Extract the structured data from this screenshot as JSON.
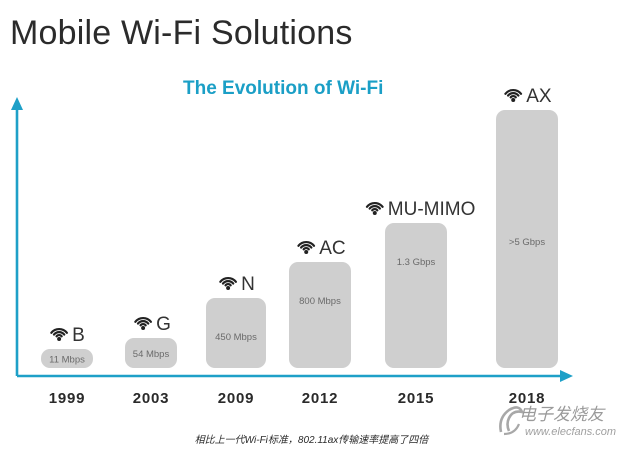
{
  "page": {
    "title": "Mobile Wi-Fi Solutions",
    "caption": "相比上一代Wi-Fi标准，802.11ax传输速率提高了四倍",
    "watermark": {
      "text": "电子发烧友",
      "url": "www.elecfans.com"
    }
  },
  "colors": {
    "bar": "#cfcfcf",
    "axis": "#1ea0c8",
    "subtitle": "#1b9fc6",
    "bar_label": "#6a6a6a",
    "standard_label": "#333333"
  },
  "icons": {
    "standard": "wifi-icon"
  },
  "chart_data": {
    "type": "bar",
    "title": "The Evolution of Wi-Fi",
    "xlabel": "",
    "ylabel": "",
    "grid": false,
    "legend": "none",
    "categories": [
      "1999",
      "2003",
      "2009",
      "2012",
      "2015",
      "2018"
    ],
    "series": [
      {
        "standards": [
          "B",
          "G",
          "N",
          "AC",
          "MU-MIMO",
          "AX"
        ],
        "values": [
          11,
          54,
          450,
          800,
          1300,
          5000
        ],
        "value_labels": [
          "11 Mbps",
          "54 Mbps",
          "450 Mbps",
          "800 Mbps",
          "1.3 Gbps",
          ">5 Gbps"
        ]
      }
    ]
  }
}
